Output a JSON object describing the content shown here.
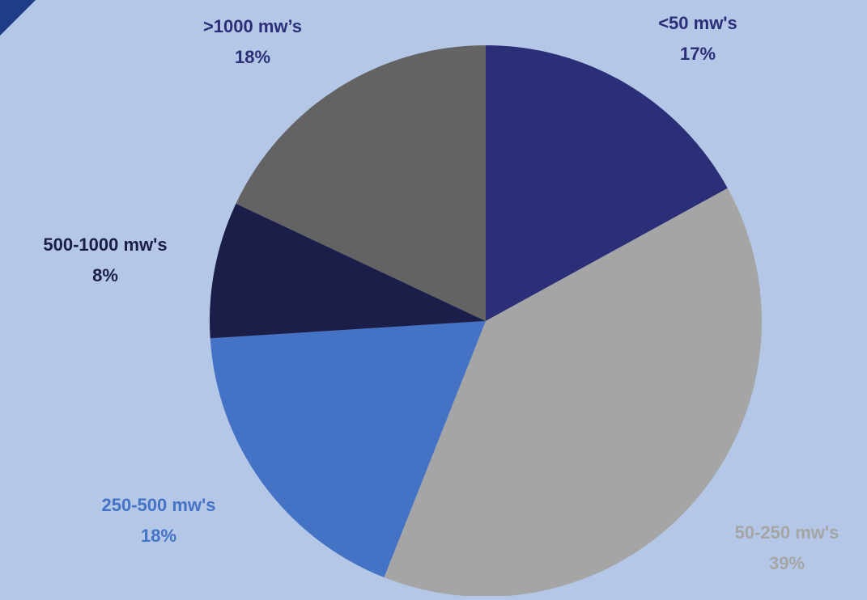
{
  "theme": {
    "background": "#B4C7E7",
    "corner_accent": "#1F3C88"
  },
  "chart_data": {
    "type": "pie",
    "title": "",
    "start_angle_deg": 0,
    "direction": "clockwise",
    "legend": "none",
    "slices": [
      {
        "label": "<50 mw's",
        "value": 17,
        "value_label": "17%",
        "color": "#2B2F77",
        "label_color": "#2B2F77"
      },
      {
        "label": "50-250 mw's",
        "value": 39,
        "value_label": "39%",
        "color": "#A5A5A5",
        "label_color": "#A5A5A5"
      },
      {
        "label": "250-500 mw's",
        "value": 18,
        "value_label": "18%",
        "color": "#4472C4",
        "label_color": "#4472C4"
      },
      {
        "label": "500-1000 mw's",
        "value": 8,
        "value_label": "8%",
        "color": "#1C1E4A",
        "label_color": "#1C1E4A"
      },
      {
        "label": ">1000 mw’s",
        "value": 18,
        "value_label": "18%",
        "color": "#636363",
        "label_color": "#2B2F77"
      }
    ]
  }
}
